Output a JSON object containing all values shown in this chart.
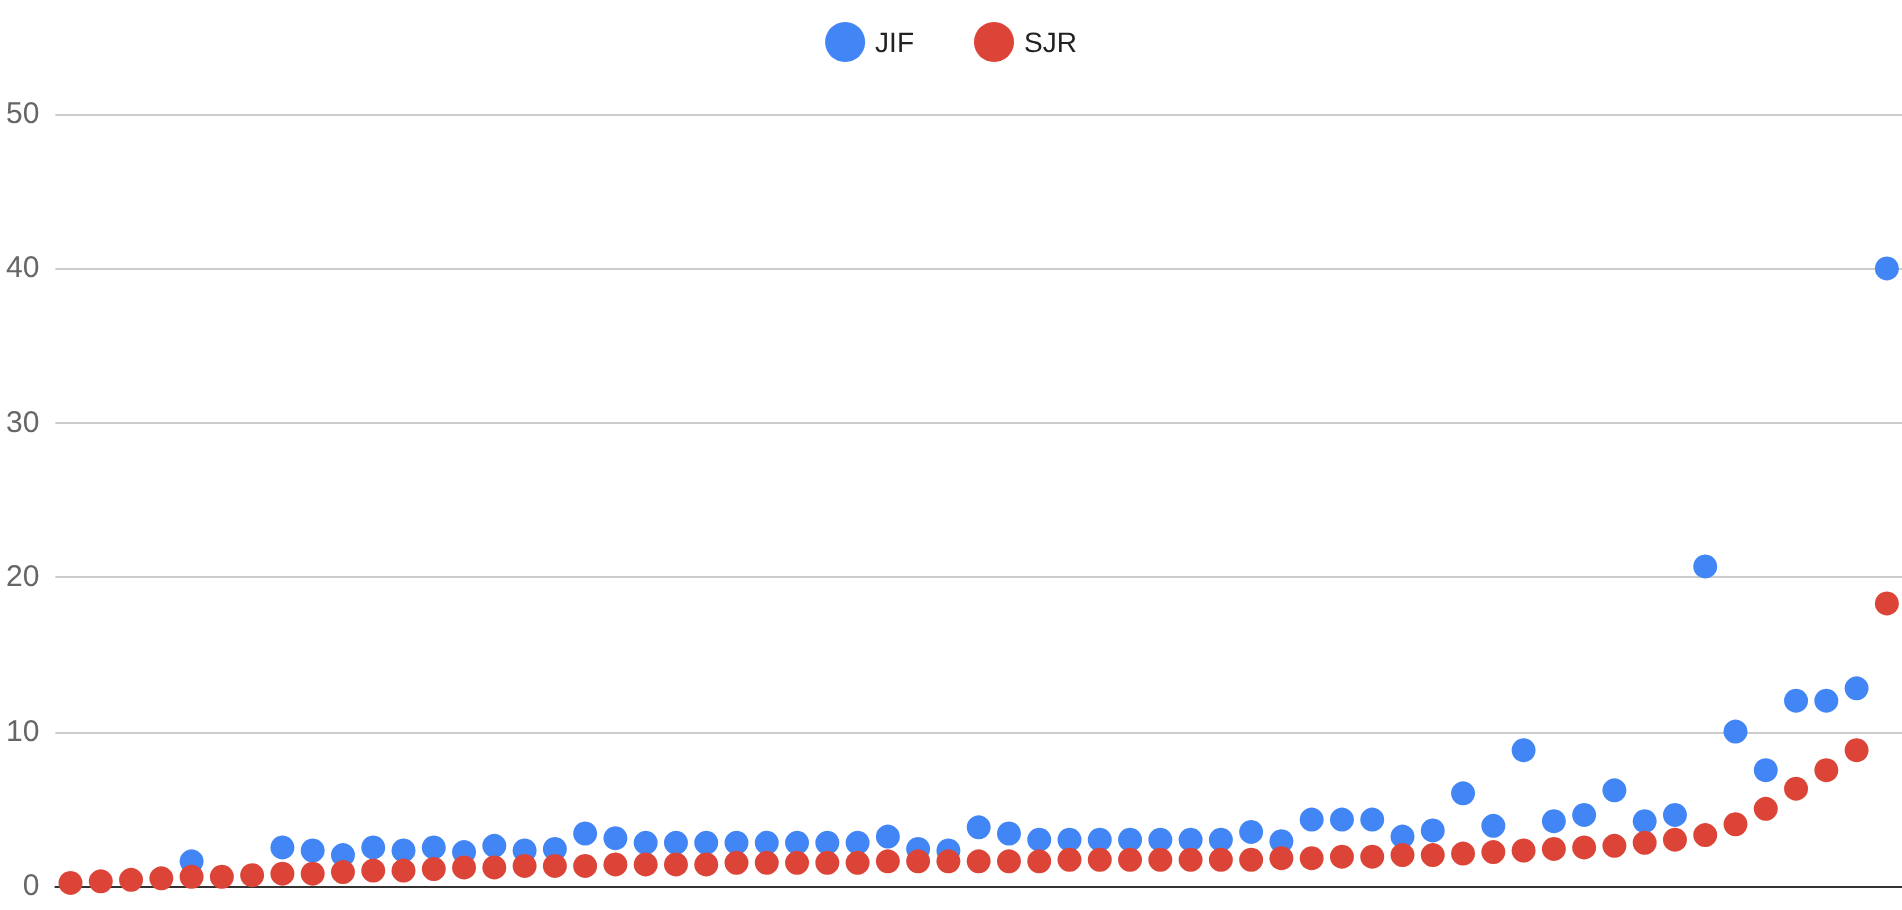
{
  "chart_data": {
    "type": "scatter",
    "categories": [
      null,
      null,
      null,
      null,
      null,
      null,
      null,
      null,
      null,
      null,
      null,
      null,
      null,
      null,
      null,
      null,
      null,
      null,
      null,
      null,
      null,
      null,
      null,
      null,
      null,
      null,
      null,
      null,
      null,
      null,
      null,
      null,
      null,
      null,
      null,
      null,
      null,
      null,
      null,
      null,
      null,
      null,
      null,
      null,
      null,
      null,
      null,
      null,
      null,
      null,
      null,
      null,
      null,
      null,
      null,
      null,
      null,
      null,
      null,
      null,
      null
    ],
    "series": [
      {
        "name": "JIF",
        "color": "#4285f4",
        "values": [
          null,
          null,
          null,
          null,
          1.6,
          null,
          null,
          2.5,
          2.3,
          2.0,
          2.5,
          2.3,
          2.5,
          2.2,
          2.6,
          2.3,
          2.4,
          3.4,
          3.1,
          2.8,
          2.8,
          2.8,
          2.8,
          2.8,
          2.8,
          2.8,
          2.8,
          3.2,
          2.4,
          2.3,
          3.8,
          3.4,
          3.0,
          3.0,
          3.0,
          3.0,
          3.0,
          3.0,
          3.0,
          3.5,
          2.9,
          4.3,
          4.3,
          4.3,
          3.2,
          3.6,
          6.0,
          3.9,
          8.8,
          4.2,
          4.6,
          6.2,
          4.2,
          4.6,
          20.7,
          10.0,
          7.5,
          12.0,
          12.0,
          12.8,
          40.0
        ]
      },
      {
        "name": "SJR",
        "color": "#db4437",
        "values": [
          0.2,
          0.3,
          0.4,
          0.5,
          0.6,
          0.6,
          0.7,
          0.8,
          0.8,
          0.9,
          1.0,
          1.0,
          1.1,
          1.2,
          1.2,
          1.3,
          1.3,
          1.3,
          1.4,
          1.4,
          1.4,
          1.4,
          1.5,
          1.5,
          1.5,
          1.5,
          1.5,
          1.6,
          1.6,
          1.6,
          1.6,
          1.6,
          1.6,
          1.7,
          1.7,
          1.7,
          1.7,
          1.7,
          1.7,
          1.7,
          1.8,
          1.8,
          1.9,
          1.9,
          2.0,
          2.0,
          2.1,
          2.2,
          2.3,
          2.4,
          2.5,
          2.6,
          2.8,
          3.0,
          3.3,
          4.0,
          5.0,
          6.3,
          7.5,
          8.8,
          18.3
        ]
      }
    ],
    "ylim": [
      0,
      50
    ],
    "yticks": [
      0,
      10,
      20,
      30,
      40,
      50
    ],
    "grid": "y",
    "legend": "top",
    "marker": "circle",
    "tick_labels": "y"
  }
}
